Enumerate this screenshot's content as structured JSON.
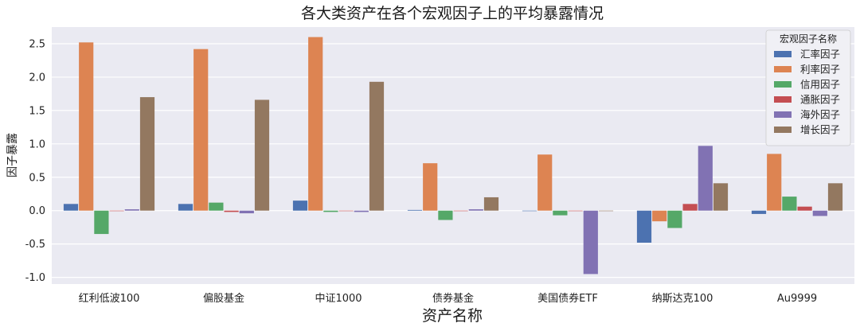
{
  "chart_data": {
    "type": "bar",
    "title": "各大类资产在各个宏观因子上的平均暴露情况",
    "xlabel": "资产名称",
    "ylabel": "因子暴露",
    "categories": [
      "红利低波100",
      "偏股基金",
      "中证1000",
      "债券基金",
      "美国债券ETF",
      "纳斯达克100",
      "Au9999"
    ],
    "ylim": [
      -1.1,
      2.75
    ],
    "yticks": [
      "-1.0",
      "-0.5",
      "0.0",
      "0.5",
      "1.0",
      "1.5",
      "2.0",
      "2.5"
    ],
    "ytick_values": [
      -1.0,
      -0.5,
      0.0,
      0.5,
      1.0,
      1.5,
      2.0,
      2.5
    ],
    "grid": true,
    "legend": {
      "title": "宏观因子名称",
      "placement": "top-right"
    },
    "series": [
      {
        "name": "汇率因子",
        "color": "#4c72b0",
        "values": [
          0.1,
          0.1,
          0.15,
          0.01,
          0.0,
          -0.48,
          -0.05
        ]
      },
      {
        "name": "利率因子",
        "color": "#dd8452",
        "values": [
          2.52,
          2.42,
          2.6,
          0.71,
          0.84,
          -0.16,
          0.85
        ]
      },
      {
        "name": "信用因子",
        "color": "#55a868",
        "values": [
          -0.35,
          0.12,
          -0.02,
          -0.14,
          -0.07,
          -0.26,
          0.21
        ]
      },
      {
        "name": "通胀因子",
        "color": "#c44e52",
        "values": [
          0.0,
          -0.02,
          0.0,
          0.0,
          0.0,
          0.1,
          0.06
        ]
      },
      {
        "name": "海外因子",
        "color": "#8172b3",
        "values": [
          0.02,
          -0.04,
          -0.02,
          0.02,
          -0.95,
          0.97,
          -0.08
        ]
      },
      {
        "name": "增长因子",
        "color": "#937860",
        "values": [
          1.7,
          1.66,
          1.93,
          0.2,
          0.0,
          0.41,
          0.41
        ]
      }
    ]
  },
  "colors": {
    "plot_background": "#eaeaf2",
    "grid": "#ffffff",
    "legend_background": "#f0f0f5"
  }
}
